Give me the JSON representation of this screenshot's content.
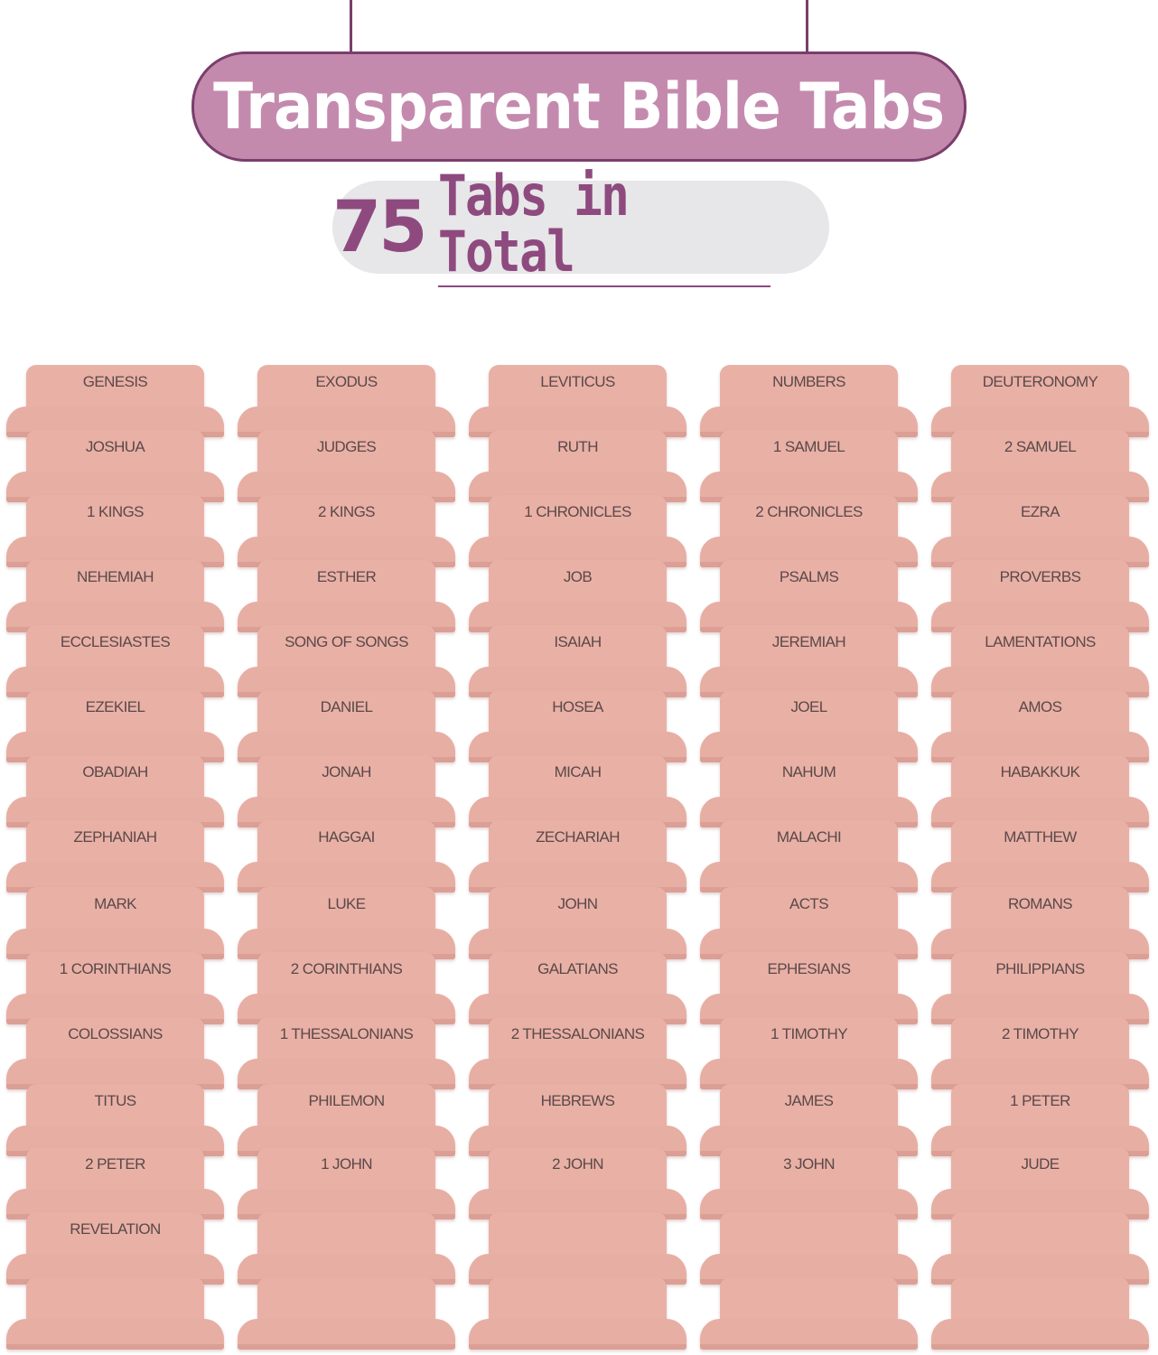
{
  "header": {
    "title": "Transparent Bible Tabs",
    "count_number": "75",
    "count_label": "Tabs in Total"
  },
  "colors": {
    "title_pill": "#c48aae",
    "title_border": "#7a3e6c",
    "count_text": "#8e4a7f",
    "tab_pink": "#e9b0a6"
  },
  "tabs": [
    [
      "GENESIS",
      "EXODUS",
      "LEVITICUS",
      "NUMBERS",
      "DEUTERONOMY"
    ],
    [
      "JOSHUA",
      "JUDGES",
      "RUTH",
      "1 SAMUEL",
      "2 SAMUEL"
    ],
    [
      "1 KINGS",
      "2 KINGS",
      "1 CHRONICLES",
      "2 CHRONICLES",
      "EZRA"
    ],
    [
      "NEHEMIAH",
      "ESTHER",
      "JOB",
      "PSALMS",
      "PROVERBS"
    ],
    [
      "ECCLESIASTES",
      "SONG OF SONGS",
      "ISAIAH",
      "JEREMIAH",
      "LAMENTATIONS"
    ],
    [
      "EZEKIEL",
      "DANIEL",
      "HOSEA",
      "JOEL",
      "AMOS"
    ],
    [
      "OBADIAH",
      "JONAH",
      "MICAH",
      "NAHUM",
      "HABAKKUK"
    ],
    [
      "ZEPHANIAH",
      "HAGGAI",
      "ZECHARIAH",
      "MALACHI",
      "MATTHEW"
    ],
    [
      "MARK",
      "LUKE",
      "JOHN",
      "ACTS",
      "ROMANS"
    ],
    [
      "1 CORINTHIANS",
      "2 CORINTHIANS",
      "GALATIANS",
      "EPHESIANS",
      "PHILIPPIANS"
    ],
    [
      "COLOSSIANS",
      "1 THESSALONIANS",
      "2 THESSALONIANS",
      "1 TIMOTHY",
      "2 TIMOTHY"
    ],
    [
      "TITUS",
      "PHILEMON",
      "HEBREWS",
      "JAMES",
      "1 PETER"
    ],
    [
      "2 PETER",
      "1 JOHN",
      "2 JOHN",
      "3 JOHN",
      "JUDE"
    ],
    [
      "REVELATION",
      "",
      "",
      "",
      ""
    ],
    [
      "",
      "",
      "",
      "",
      ""
    ]
  ]
}
